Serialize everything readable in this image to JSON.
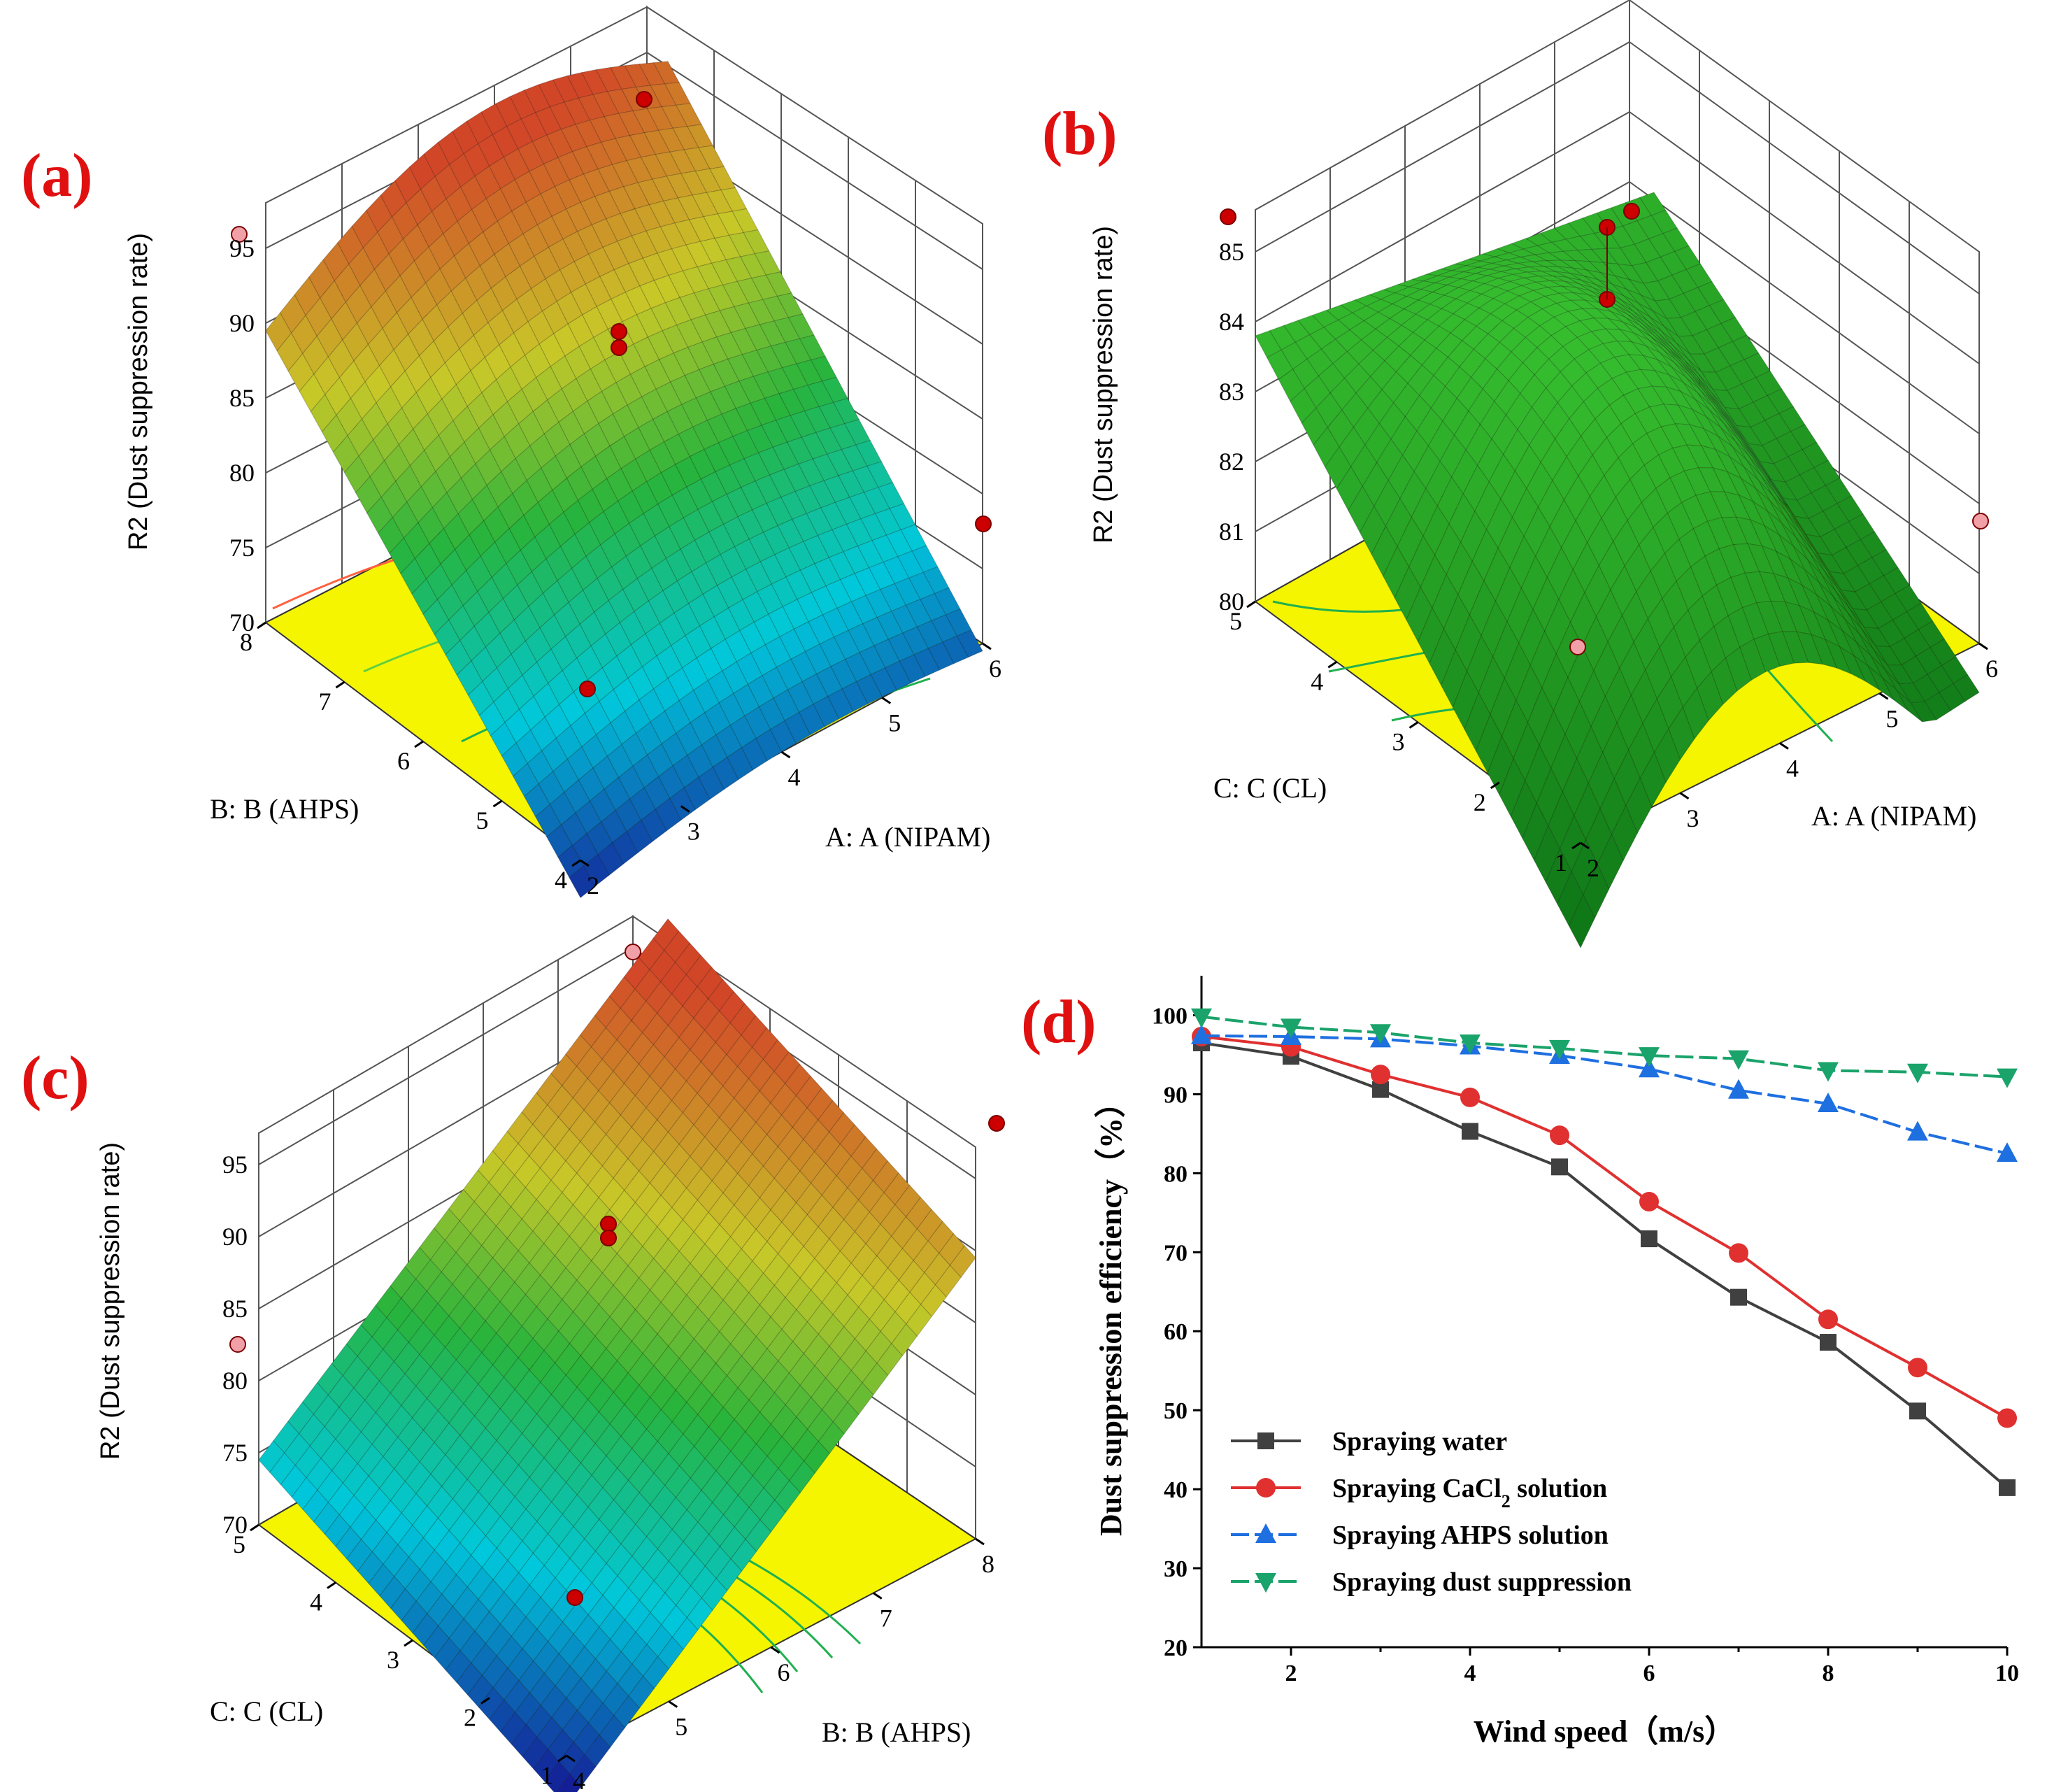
{
  "colors": {
    "red": "#e03030",
    "black": "#404040",
    "blue": "#1e6fe0",
    "green": "#1aa36a",
    "floor": "#f5f500",
    "panel_label": "#e01010",
    "design_point": "#cc0000",
    "design_point_light": "#f2a0a8"
  },
  "panels": {
    "a": {
      "label": "(a)",
      "zlabel": "R2 (Dust suppression rate)",
      "z_ticks": [
        "95",
        "90",
        "85",
        "80",
        "75",
        "70"
      ],
      "x_title": "A: A (NIPAM)",
      "x_ticks": [
        "2",
        "3",
        "4",
        "5",
        "6"
      ],
      "y_title": "B: B (AHPS)",
      "y_ticks": [
        "4",
        "5",
        "6",
        "7",
        "8"
      ]
    },
    "b": {
      "label": "(b)",
      "zlabel": "R2 (Dust suppression rate)",
      "z_ticks": [
        "85",
        "84",
        "83",
        "82",
        "81",
        "80"
      ],
      "x_title": "A: A (NIPAM)",
      "x_ticks": [
        "2",
        "3",
        "4",
        "5",
        "6"
      ],
      "y_title": "C: C (CL)",
      "y_ticks": [
        "1",
        "2",
        "3",
        "4",
        "5"
      ]
    },
    "c": {
      "label": "(c)",
      "zlabel": "R2 (Dust suppression rate)",
      "z_ticks": [
        "95",
        "90",
        "85",
        "80",
        "75",
        "70"
      ],
      "x_title": "B: B (AHPS)",
      "x_ticks": [
        "4",
        "5",
        "6",
        "7",
        "8"
      ],
      "y_title": "C: C (CL)",
      "y_ticks": [
        "1",
        "2",
        "3",
        "4",
        "5"
      ]
    }
  },
  "chart_data": [
    {
      "type": "surface",
      "panel": "(a)",
      "title": "(a)",
      "xlabel": "A: A (NIPAM)",
      "ylabel": "B: B (AHPS)",
      "zlabel": "R2 (Dust suppression rate)",
      "xlim": [
        2,
        6
      ],
      "ylim": [
        4,
        8
      ],
      "zlim": [
        70,
        95
      ],
      "corner_values": {
        "A2_B4": 67.5,
        "A6_B4": 69.5,
        "A2_B8": 89.5,
        "A6_B8": 93.0
      },
      "center_points": [
        82.0,
        81.0
      ]
    },
    {
      "type": "surface",
      "panel": "(b)",
      "title": "(b)",
      "xlabel": "A: A (NIPAM)",
      "ylabel": "C: C (CL)",
      "zlabel": "R2 (Dust suppression rate)",
      "xlim": [
        2,
        6
      ],
      "ylim": [
        1,
        5
      ],
      "zlim": [
        80,
        85
      ],
      "corner_values": {
        "A2_C1": 78.5,
        "A6_C1": 79.3,
        "A2_C5": 83.8,
        "A6_C5": 83.0
      },
      "center_points": [
        83.5,
        82.2
      ]
    },
    {
      "type": "surface",
      "panel": "(c)",
      "title": "(c)",
      "xlabel": "B: B (AHPS)",
      "ylabel": "C: C (CL)",
      "zlabel": "R2 (Dust suppression rate)",
      "xlim": [
        4,
        8
      ],
      "ylim": [
        1,
        5
      ],
      "zlim": [
        70,
        95
      ],
      "corner_values": {
        "B4_C1": 66.5,
        "B8_C1": 89.5,
        "B4_C5": 74.5,
        "B8_C5": 97.0
      },
      "center_points": [
        82.0,
        81.0
      ]
    },
    {
      "type": "line",
      "panel": "(d)",
      "title": "(d)",
      "xlabel": "Wind speed（m/s）",
      "ylabel": "Dust suppression efficiency（%）",
      "xlim": [
        1,
        10
      ],
      "ylim": [
        20,
        105
      ],
      "x_ticks": [
        2,
        4,
        6,
        8,
        10
      ],
      "y_ticks": [
        20,
        30,
        40,
        50,
        60,
        70,
        80,
        90,
        100
      ],
      "x": [
        1,
        2,
        3,
        4,
        5,
        6,
        7,
        8,
        9,
        10
      ],
      "series": [
        {
          "name": "Spraying water",
          "marker": "square",
          "color": "#404040",
          "values": [
            96.5,
            94.8,
            90.6,
            85.3,
            80.8,
            71.7,
            64.3,
            58.6,
            49.9,
            40.2
          ]
        },
        {
          "name": "Spraying CaCl",
          "name_sub": "2",
          "name_rest": " solution",
          "marker": "circle",
          "color": "#e03030",
          "values": [
            97.3,
            96.0,
            92.5,
            89.6,
            84.8,
            76.4,
            69.9,
            61.5,
            55.4,
            49.0
          ]
        },
        {
          "name": "Spraying AHPS solution",
          "marker": "triangle-up",
          "color": "#1e6fe0",
          "values": [
            97.4,
            97.3,
            97.0,
            96.1,
            94.9,
            93.2,
            90.5,
            88.8,
            85.2,
            82.5
          ]
        },
        {
          "name": "Spraying dust suppression",
          "marker": "triangle-down",
          "color": "#1aa36a",
          "values": [
            99.8,
            98.5,
            97.8,
            96.5,
            95.8,
            94.9,
            94.5,
            93.0,
            92.8,
            92.2
          ]
        }
      ]
    }
  ]
}
